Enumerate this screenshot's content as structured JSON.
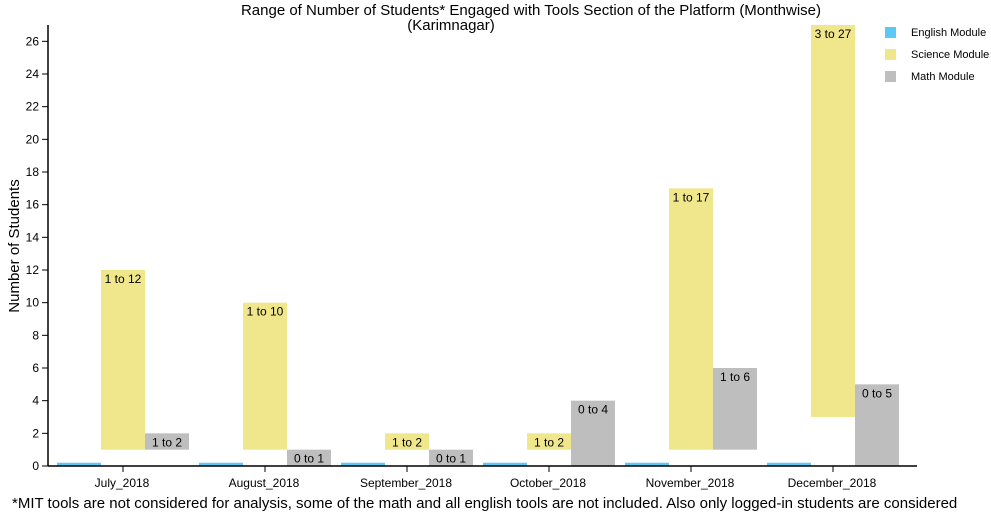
{
  "chart_data": {
    "type": "bar",
    "subtype": "floating-range",
    "title": "Range of Number of Students* Engaged with Tools Section of the Platform (Monthwise)",
    "subtitle": "(Karimnagar)",
    "ylabel": "Number of Students",
    "xlabel": "",
    "ylim": [
      0,
      27
    ],
    "yticks": [
      0,
      2,
      4,
      6,
      8,
      10,
      12,
      14,
      16,
      18,
      20,
      22,
      24,
      26
    ],
    "categories": [
      "July_2018",
      "August_2018",
      "September_2018",
      "October_2018",
      "November_2018",
      "December_2018"
    ],
    "legend_position": "top-right",
    "grid": false,
    "series": [
      {
        "name": "English Module",
        "color": "#5bc8f5",
        "ranges": [
          [
            0,
            0.2
          ],
          [
            0,
            0.2
          ],
          [
            0,
            0.2
          ],
          [
            0,
            0.2
          ],
          [
            0,
            0.2
          ],
          [
            0,
            0.2
          ]
        ],
        "labels": [
          "",
          "",
          "",
          "",
          "",
          ""
        ]
      },
      {
        "name": "Science Module",
        "color": "#f0e68c",
        "ranges": [
          [
            1,
            12
          ],
          [
            1,
            10
          ],
          [
            1,
            2
          ],
          [
            1,
            2
          ],
          [
            1,
            17
          ],
          [
            3,
            27
          ]
        ],
        "labels": [
          "1 to 12",
          "1 to 10",
          "1 to 2",
          "1 to 2",
          "1 to 17",
          "3 to 27"
        ]
      },
      {
        "name": "Math Module",
        "color": "#bebebe",
        "ranges": [
          [
            1,
            2
          ],
          [
            0,
            1
          ],
          [
            0,
            1
          ],
          [
            0,
            4
          ],
          [
            1,
            6
          ],
          [
            0,
            5
          ]
        ],
        "labels": [
          "1 to 2",
          "0 to 1",
          "0 to 1",
          "0 to 4",
          "1 to 6",
          "0 to 5"
        ]
      }
    ]
  },
  "footnote": "*MIT tools are not considered for analysis, some of the math and all english tools are not included. Also only logged-in students are considered"
}
